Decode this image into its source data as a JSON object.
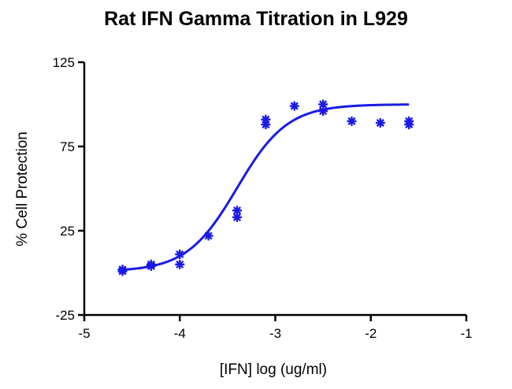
{
  "chart_data": {
    "type": "scatter",
    "title": "Rat IFN Gamma Titration in L929",
    "xlabel": "[IFN] log (ug/ml)",
    "ylabel": "% Cell Protection",
    "xlim": [
      -5,
      -1
    ],
    "ylim": [
      -25,
      125
    ],
    "xticks": [
      "-5",
      "-4",
      "-3",
      "-2",
      "-1"
    ],
    "yticks": [
      "-25",
      "25",
      "75",
      "125"
    ],
    "xtick_values": [
      -5,
      -4,
      -3,
      -2,
      -1
    ],
    "ytick_values": [
      -25,
      25,
      75,
      125
    ],
    "colors": {
      "series": "#1a1ae6",
      "axis": "#000000"
    },
    "grid": false,
    "legend": "none",
    "series": [
      {
        "points": [
          {
            "x": -4.6,
            "y": 2
          },
          {
            "x": -4.6,
            "y": 1
          },
          {
            "x": -4.3,
            "y": 5
          },
          {
            "x": -4.3,
            "y": 4
          },
          {
            "x": -4.0,
            "y": 11
          },
          {
            "x": -4.0,
            "y": 5
          },
          {
            "x": -3.7,
            "y": 22
          },
          {
            "x": -3.4,
            "y": 37
          },
          {
            "x": -3.4,
            "y": 33
          },
          {
            "x": -3.1,
            "y": 91
          },
          {
            "x": -3.1,
            "y": 88
          },
          {
            "x": -2.8,
            "y": 99
          },
          {
            "x": -2.5,
            "y": 100
          },
          {
            "x": -2.5,
            "y": 96
          },
          {
            "x": -2.2,
            "y": 90
          },
          {
            "x": -1.9,
            "y": 89
          },
          {
            "x": -1.6,
            "y": 90
          },
          {
            "x": -1.6,
            "y": 88
          }
        ],
        "fit_curve": {
          "model": "4PL",
          "bottom": 0.8,
          "top": 100,
          "log_ec50": -3.4,
          "hill_slope": 1.65,
          "x_range": [
            -4.6,
            -1.6
          ]
        }
      }
    ]
  }
}
